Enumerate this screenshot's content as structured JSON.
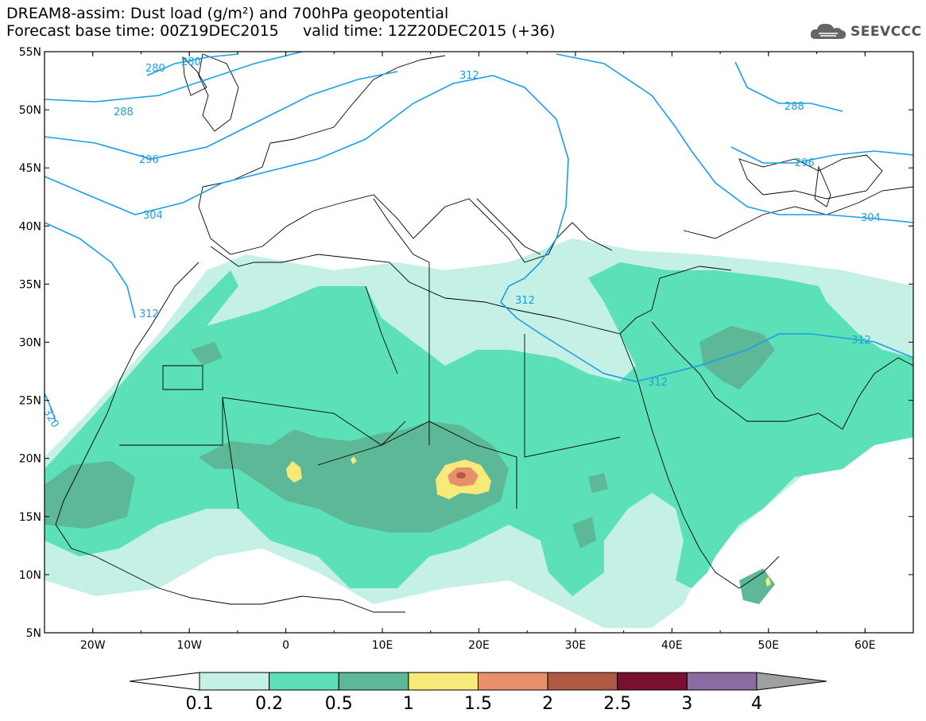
{
  "header": {
    "title_line1": "DREAM8-assim: Dust load (g/m²) and 700hPa geopotential",
    "title_line2": "Forecast base time: 00Z19DEC2015     valid time: 12Z20DEC2015 (+36)",
    "logo_text": "SEEVCCC"
  },
  "axes": {
    "lat_labels": [
      "55N",
      "50N",
      "45N",
      "40N",
      "35N",
      "30N",
      "25N",
      "20N",
      "15N",
      "10N",
      "5N"
    ],
    "lon_labels": [
      "20W",
      "10W",
      "0",
      "10E",
      "20E",
      "30E",
      "40E",
      "50E",
      "60E"
    ]
  },
  "contour_labels": [
    "280",
    "280",
    "288",
    "296",
    "304",
    "312",
    "320",
    "312",
    "312",
    "312",
    "288",
    "296",
    "304",
    "312"
  ],
  "colorbar": {
    "colors": [
      "#ffffff",
      "#c4f0e6",
      "#5be0b8",
      "#5cb896",
      "#f7e97a",
      "#e8906a",
      "#b05a46",
      "#7a1030",
      "#8c6ca0",
      "#a0a0a0"
    ],
    "labels": [
      "0.1",
      "0.2",
      "0.5",
      "1",
      "1.5",
      "2",
      "2.5",
      "3",
      "4"
    ]
  },
  "colors": {
    "contour": "#1a9fe6",
    "coast": "#000000"
  }
}
